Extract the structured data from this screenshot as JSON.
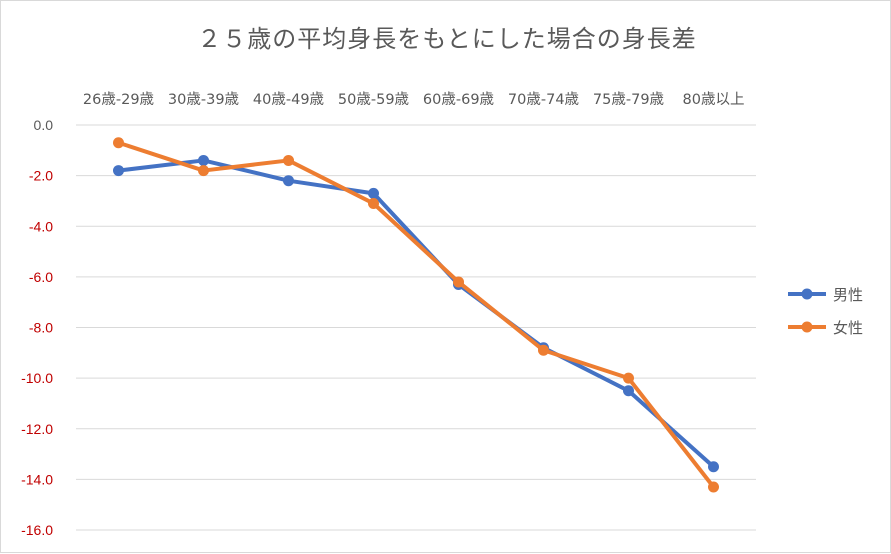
{
  "chart_data": {
    "type": "line",
    "title": "２５歳の平均身長をもとにした場合の身長差",
    "categories": [
      "26歳-29歳",
      "30歳-39歳",
      "40歳-49歳",
      "50歳-59歳",
      "60歳-69歳",
      "70歳-74歳",
      "75歳-79歳",
      "80歳以上"
    ],
    "series": [
      {
        "name": "男性",
        "color": "#4472C4",
        "values": [
          -1.8,
          -1.4,
          -2.2,
          -2.7,
          -6.3,
          -8.8,
          -10.5,
          -13.5
        ]
      },
      {
        "name": "女性",
        "color": "#ED7D31",
        "values": [
          -0.7,
          -1.8,
          -1.4,
          -3.1,
          -6.2,
          -8.9,
          -10.0,
          -14.3
        ]
      }
    ],
    "yticks": [
      "0.0",
      "-2.0",
      "-4.0",
      "-6.0",
      "-8.0",
      "-10.0",
      "-12.0",
      "-14.0",
      "-16.0"
    ],
    "ylim": [
      -16,
      0
    ],
    "negative_tick_color": "#C00000",
    "zero_tick_color": "#595959",
    "grid": true,
    "legend_position": "right",
    "x_axis_position": "top"
  }
}
